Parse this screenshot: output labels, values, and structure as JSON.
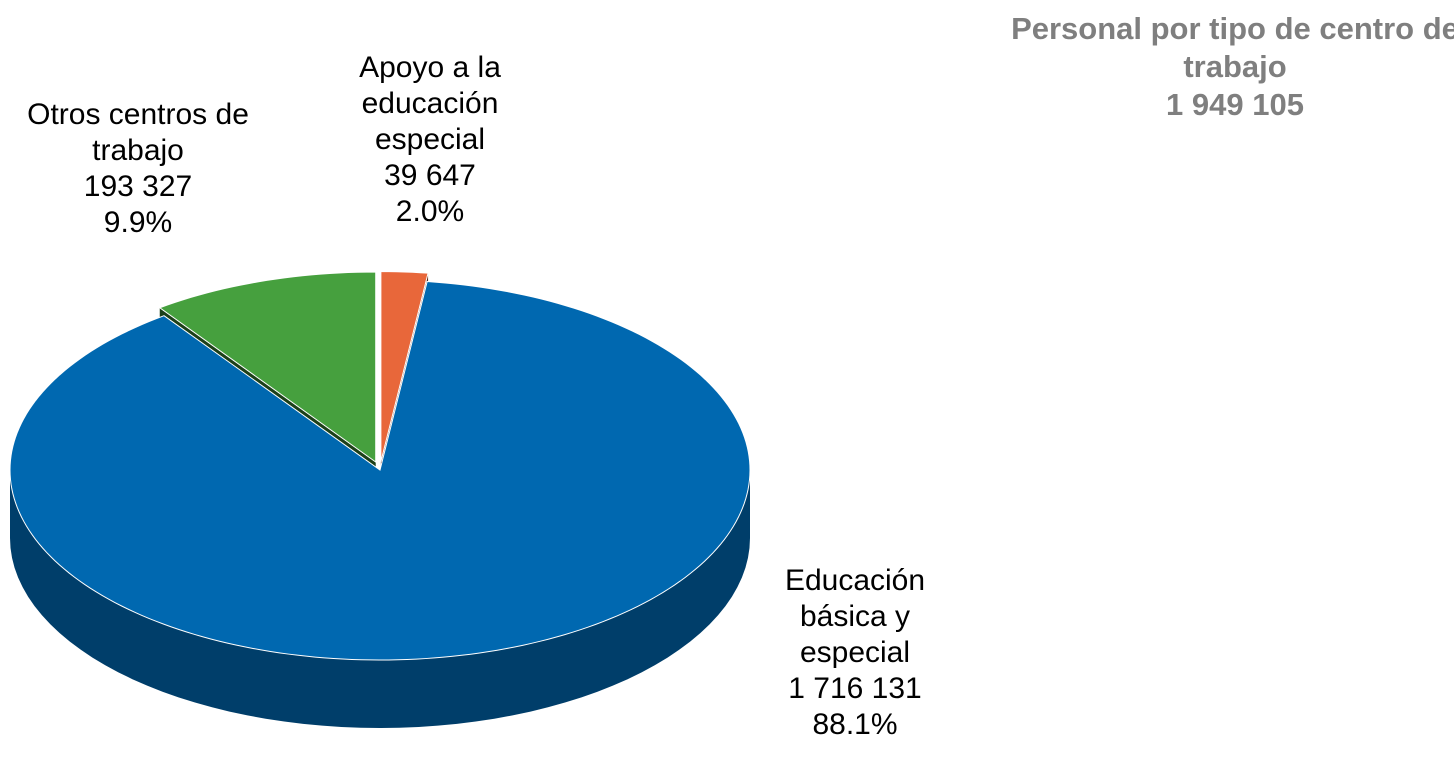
{
  "chart_data": {
    "type": "pie",
    "title": "Personal por tipo de centro de trabajo",
    "subtitle": "1 949 105",
    "categories": [
      "Apoyo a la educación especial",
      "Educación básica y especial",
      "Otros centros de trabajo"
    ],
    "values": [
      39647,
      1716131,
      193327
    ],
    "value_labels": [
      "39 647",
      "1 716 131",
      "193 327"
    ],
    "percents": [
      2.0,
      88.1,
      9.9
    ],
    "percent_labels": [
      "2.0%",
      "88.1%",
      "9.9%"
    ],
    "colors": [
      "#e8673a",
      "#0068b0",
      "#46a03e"
    ]
  }
}
